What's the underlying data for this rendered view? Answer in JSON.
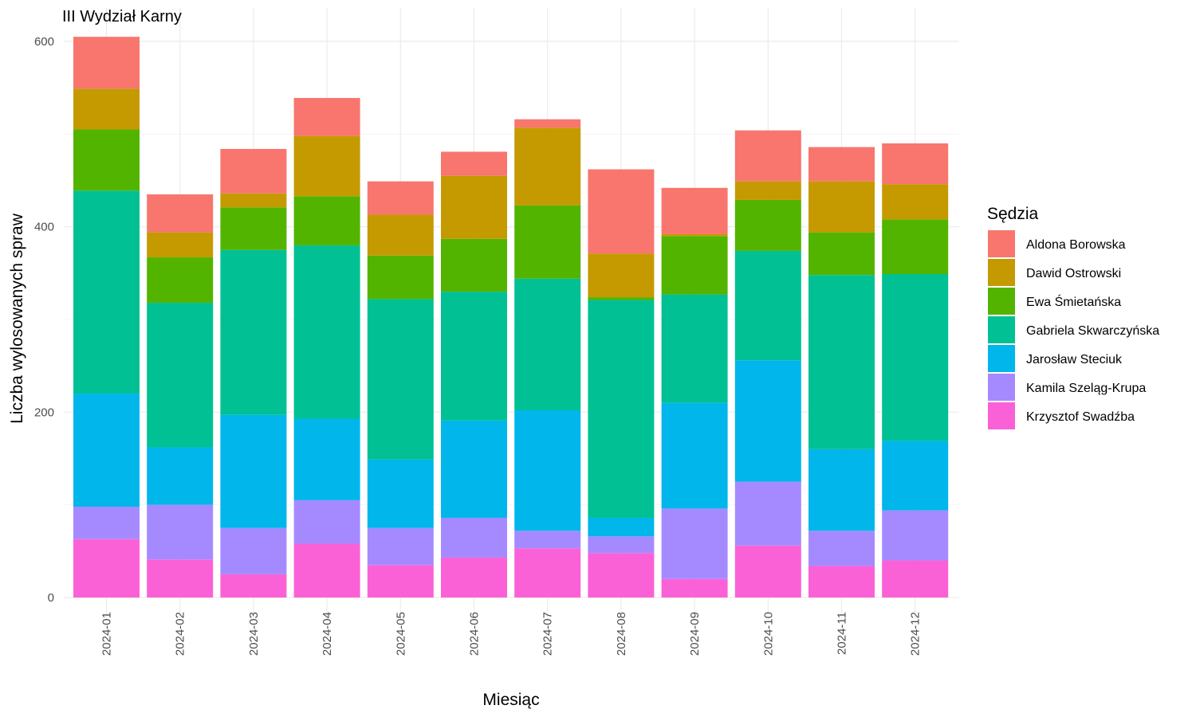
{
  "chart_data": {
    "type": "bar",
    "stacked": true,
    "title": "III Wydział Karny",
    "xlabel": "Miesiąc",
    "ylabel": "Liczba wylosowanych spraw",
    "ylim": [
      0,
      610
    ],
    "yticks": [
      0,
      200,
      400,
      600
    ],
    "grid": true,
    "legend_title": "Sędzia",
    "legend_position": "right",
    "categories": [
      "2024-01",
      "2024-02",
      "2024-03",
      "2024-04",
      "2024-05",
      "2024-06",
      "2024-07",
      "2024-08",
      "2024-09",
      "2024-10",
      "2024-11",
      "2024-12"
    ],
    "series": [
      {
        "name": "Aldona Borowska",
        "color": "#F8766D",
        "values": [
          56,
          41,
          48,
          41,
          36,
          26,
          9,
          91,
          50,
          55,
          37,
          44
        ]
      },
      {
        "name": "Dawid Ostrowski",
        "color": "#C49A00",
        "values": [
          44,
          27,
          15,
          65,
          44,
          68,
          84,
          47,
          2,
          20,
          55,
          38
        ]
      },
      {
        "name": "Ewa Śmietańska",
        "color": "#53B400",
        "values": [
          66,
          49,
          46,
          53,
          47,
          57,
          79,
          3,
          63,
          55,
          46,
          59
        ]
      },
      {
        "name": "Gabriela Skwarczyńska",
        "color": "#00C094",
        "values": [
          219,
          156,
          178,
          187,
          173,
          139,
          142,
          235,
          117,
          118,
          188,
          180
        ]
      },
      {
        "name": "Jarosław Steciuk",
        "color": "#00B6EB",
        "values": [
          122,
          62,
          122,
          88,
          74,
          105,
          130,
          20,
          114,
          131,
          88,
          75
        ]
      },
      {
        "name": "Kamila Szeląg-Krupa",
        "color": "#A58AFF",
        "values": [
          35,
          59,
          50,
          47,
          40,
          43,
          19,
          18,
          76,
          69,
          38,
          54
        ]
      },
      {
        "name": "Krzysztof Swadźba",
        "color": "#FB61D7",
        "values": [
          63,
          41,
          25,
          58,
          35,
          43,
          53,
          48,
          20,
          56,
          34,
          40
        ]
      }
    ]
  }
}
